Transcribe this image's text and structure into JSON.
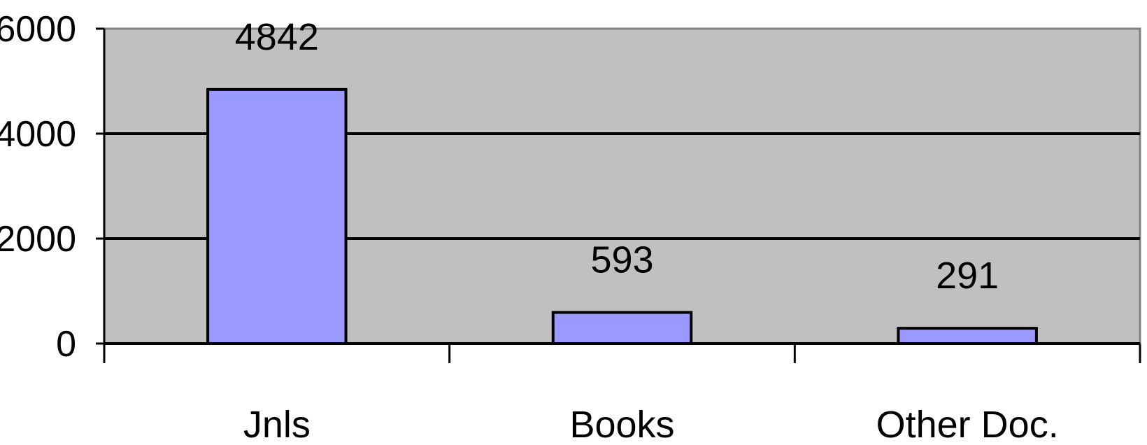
{
  "chart_data": {
    "type": "bar",
    "categories": [
      "Jnls",
      "Books",
      "Other Doc."
    ],
    "values": [
      4842,
      593,
      291
    ],
    "data_labels": [
      "4842",
      "593",
      "291"
    ],
    "title": "",
    "xlabel": "",
    "ylabel": "",
    "ylim": [
      0,
      6000
    ],
    "yticks": [
      "0",
      "2000",
      "4000",
      "6000"
    ],
    "grid": true,
    "legend": "none",
    "colors": {
      "bar_fill": "#9999ff",
      "bar_stroke": "#000000",
      "plot_background": "#c0c0c0",
      "gridline": "#000000"
    }
  }
}
